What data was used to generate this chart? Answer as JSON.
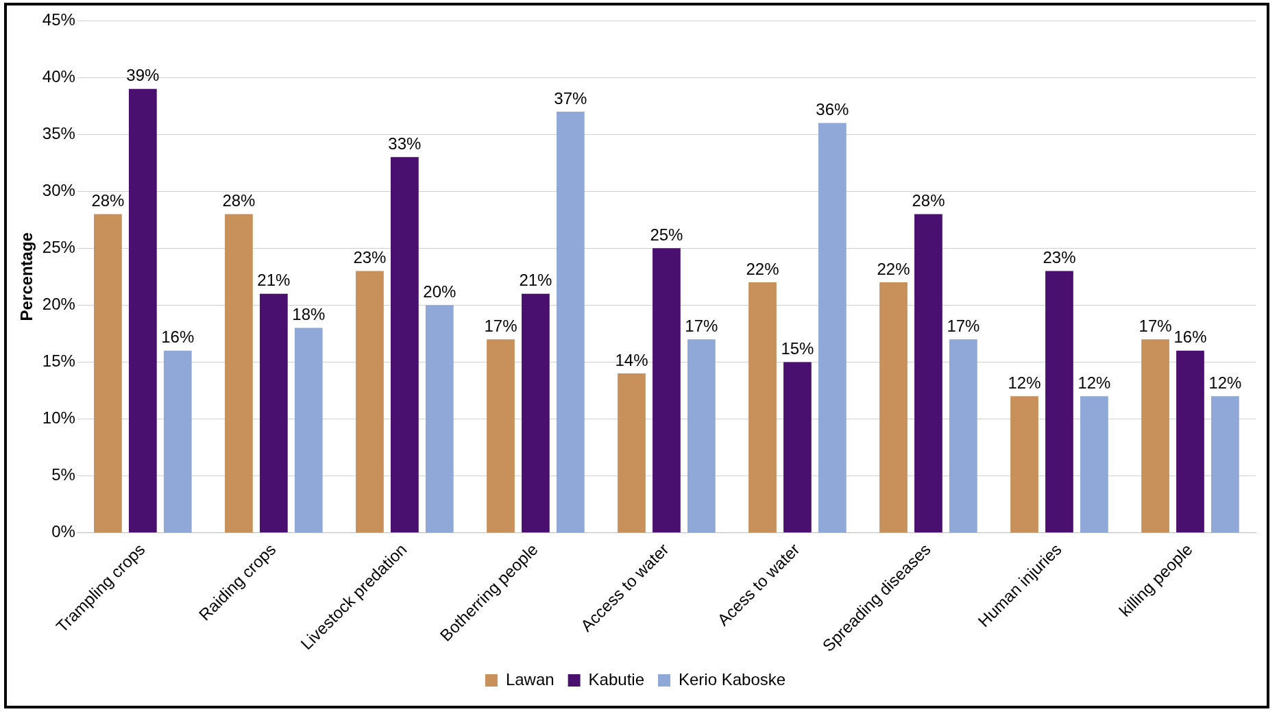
{
  "chart_data": {
    "type": "bar",
    "ylabel": "Percentage",
    "categories": [
      "Trampling crops",
      "Raiding crops",
      "Livestock predation",
      "Botherring people",
      "Access to water",
      "Acess to water",
      "Spreading diseases",
      "Human injuries",
      "killing people"
    ],
    "series": [
      {
        "name": "Lawan",
        "color": "#c8905a",
        "values": [
          28,
          28,
          23,
          17,
          14,
          22,
          22,
          12,
          17
        ],
        "value_labels": [
          "28%",
          "28%",
          "23%",
          "17%",
          "14%",
          "22%",
          "22%",
          "12%",
          "17%"
        ]
      },
      {
        "name": "Kabutie",
        "color": "#4a1070",
        "values": [
          39,
          21,
          33,
          21,
          25,
          15,
          28,
          23,
          16
        ],
        "value_labels": [
          "39%",
          "21%",
          "33%",
          "21%",
          "25%",
          "15%",
          "28%",
          "23%",
          "16%"
        ]
      },
      {
        "name": "Kerio Kaboske",
        "color": "#8fa8d8",
        "values": [
          16,
          18,
          20,
          37,
          17,
          36,
          17,
          12,
          12
        ],
        "value_labels": [
          "16%",
          "18%",
          "20%",
          "37%",
          "17%",
          "36%",
          "17%",
          "12%",
          "12%"
        ]
      }
    ],
    "ylim": [
      0,
      45
    ],
    "yticks": [
      {
        "value": 0,
        "label": "0%"
      },
      {
        "value": 5,
        "label": "5%"
      },
      {
        "value": 10,
        "label": "10%"
      },
      {
        "value": 15,
        "label": "15%"
      },
      {
        "value": 20,
        "label": "20%"
      },
      {
        "value": 25,
        "label": "25%"
      },
      {
        "value": 30,
        "label": "30%"
      },
      {
        "value": 35,
        "label": "35%"
      },
      {
        "value": 40,
        "label": "40%"
      },
      {
        "value": 45,
        "label": "45%"
      }
    ],
    "grid": "y",
    "legend": "bottom"
  }
}
